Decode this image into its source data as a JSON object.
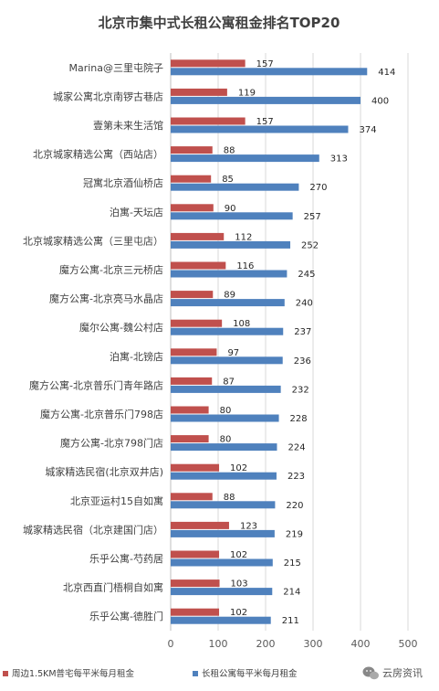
{
  "chart_data": {
    "type": "bar",
    "orientation": "horizontal",
    "title": "北京市集中式长租公寓租金排名TOP20",
    "categories": [
      "Marina@三里屯院子",
      "城家公寓北京南锣古巷店",
      "壹第未来生活馆",
      "北京城家精选公寓（西站店）",
      "冠寓北京酒仙桥店",
      "泊寓-天坛店",
      "北京城家精选公寓（三里屯店）",
      "魔方公寓-北京三元桥店",
      "魔方公寓-北京亮马水晶店",
      "魔尔公寓-魏公村店",
      "泊寓-北镑店",
      "魔方公寓-北京普乐门青年路店",
      "魔方公寓-北京普乐门798店",
      "魔方公寓-北京798门店",
      "城家精选民宿(北京双井店)",
      "北京亚运村15自如寓",
      "城家精选民宿（北京建国门店）",
      "乐乎公寓-芍药居",
      "北京西直门梧桐自如寓",
      "乐乎公寓-德胜门"
    ],
    "series": [
      {
        "name": "周边1.5KM普宅每平米每月租金",
        "color": "#c0504d",
        "values": [
          157,
          119,
          157,
          88,
          85,
          90,
          112,
          116,
          89,
          108,
          97,
          87,
          80,
          80,
          102,
          88,
          123,
          102,
          103,
          102
        ]
      },
      {
        "name": "长租公寓每平米每月租金",
        "color": "#4f81bd",
        "values": [
          414,
          400,
          374,
          313,
          270,
          257,
          252,
          245,
          240,
          237,
          236,
          232,
          228,
          224,
          223,
          220,
          219,
          215,
          214,
          211
        ]
      }
    ],
    "xlim": [
      0,
      500
    ],
    "xticks": [
      0,
      100,
      200,
      300,
      400,
      500
    ],
    "grid": true,
    "legend_position": "bottom"
  },
  "watermark": {
    "text": "云房资讯",
    "icon": "wechat-icon"
  }
}
